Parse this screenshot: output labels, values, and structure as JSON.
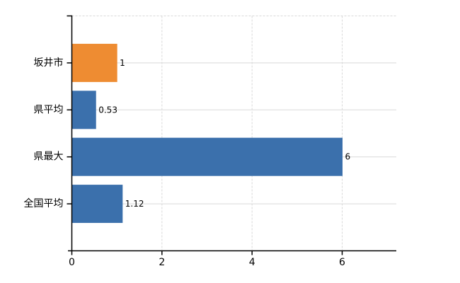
{
  "chart_data": {
    "type": "bar",
    "orientation": "horizontal",
    "title": "",
    "xlabel": "",
    "ylabel": "",
    "categories": [
      "坂井市",
      "県平均",
      "県最大",
      "全国平均"
    ],
    "values": [
      1,
      0.53,
      6,
      1.12
    ],
    "value_labels": [
      "1",
      "0.53",
      "6",
      "1.12"
    ],
    "bar_colors": [
      "#EE8C32",
      "#3B70AC",
      "#3B70AC",
      "#3B70AC"
    ],
    "x_tick_labels": [
      "0",
      "2",
      "4",
      "6"
    ],
    "x_tick_values": [
      0,
      2,
      4,
      6
    ],
    "xlim": [
      0,
      7.2
    ],
    "grid": true,
    "gridline_vertical_style": "dashed",
    "gridline_horizontal_style": "solid",
    "legend": false,
    "colors": {
      "background": "#ffffff",
      "axis": "#000000",
      "gridline": "#D9D9D9",
      "text": "#000000",
      "bar_orange": "#EE8C32",
      "bar_blue": "#3B70AC"
    }
  }
}
